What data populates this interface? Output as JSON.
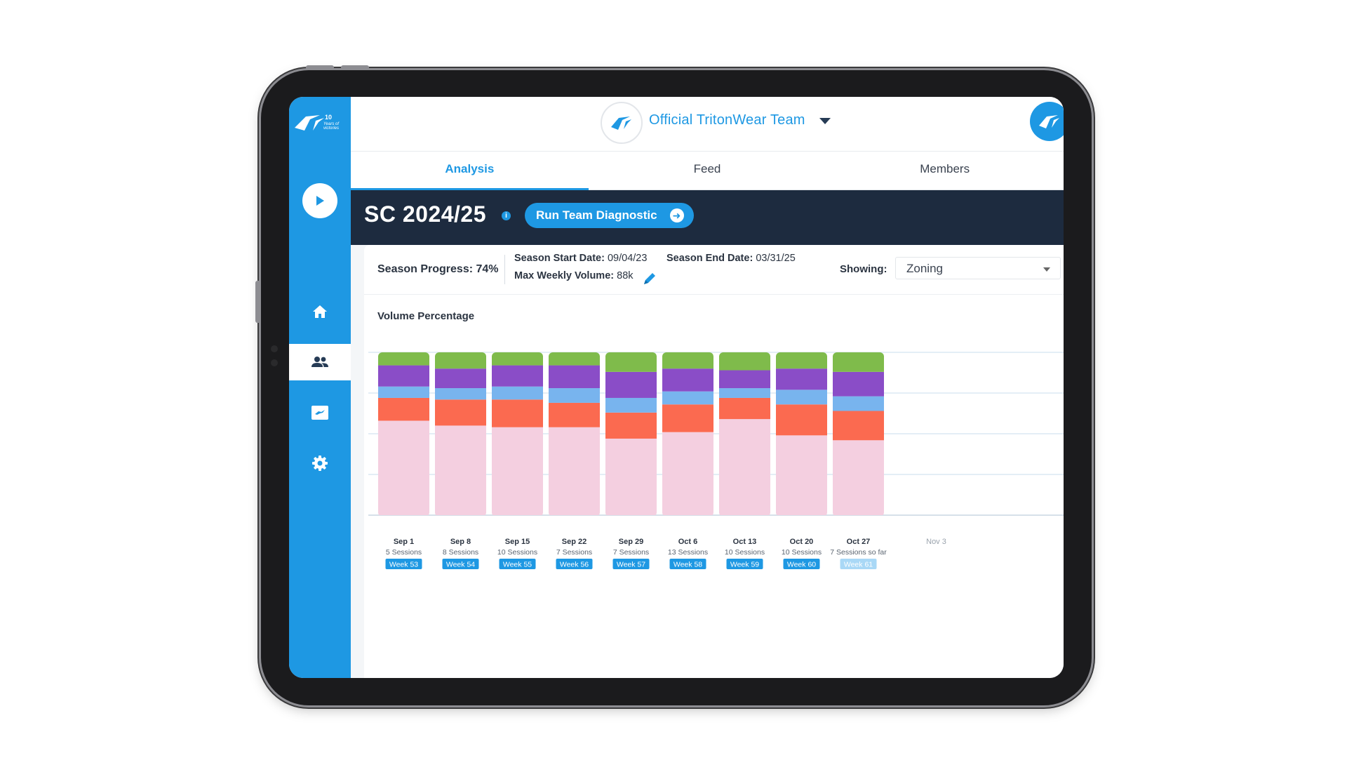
{
  "app": {
    "logo_text": "10 Years of victories",
    "team_name": "Official TritonWear Team"
  },
  "tabs": [
    {
      "label": "Analysis",
      "active": true
    },
    {
      "label": "Feed",
      "active": false
    },
    {
      "label": "Members",
      "active": false
    }
  ],
  "sidebar": {
    "items": [
      {
        "icon": "play-icon"
      },
      {
        "icon": "home-icon"
      },
      {
        "icon": "team-icon",
        "active": true
      },
      {
        "icon": "chart-icon"
      },
      {
        "icon": "gear-icon"
      }
    ]
  },
  "season": {
    "title": "SC 2024/25",
    "info_icon": "i",
    "diagnostic_label": "Run Team Diagnostic",
    "progress": "Season Progress: 74%",
    "start_label": "Season Start Date:",
    "start_value": "09/04/23",
    "end_label": "Season End Date:",
    "end_value": "03/31/25",
    "max_label": "Max Weekly Volume:",
    "max_value": "88k",
    "showing_label": "Showing:",
    "showing_value": "Zoning"
  },
  "colors": {
    "accent": "#1e98e3",
    "header_dark": "#1d2b3f",
    "zone_pink": "#f4cfe0",
    "zone_red": "#fb6a50",
    "zone_lightblue": "#78b4ee",
    "zone_purple": "#8a4dc7",
    "zone_green": "#7fbb4b"
  },
  "chart_data": {
    "type": "bar",
    "stacked": true,
    "title": "Volume Percentage",
    "ylim": [
      0,
      100
    ],
    "grid": true,
    "categories": [
      "Sep 1",
      "Sep 8",
      "Sep 15",
      "Sep 22",
      "Sep 29",
      "Oct 6",
      "Oct 13",
      "Oct 20",
      "Oct 27",
      "Nov 3"
    ],
    "sessions": [
      "5 Sessions",
      "8 Sessions",
      "10 Sessions",
      "7 Sessions",
      "7 Sessions",
      "13 Sessions",
      "10 Sessions",
      "10 Sessions",
      "7 Sessions so far",
      ""
    ],
    "weeks": [
      "Week 53",
      "Week 54",
      "Week 55",
      "Week 56",
      "Week 57",
      "Week 58",
      "Week 59",
      "Week 60",
      "Week 61",
      ""
    ],
    "series": [
      {
        "color": "#f4cfe0",
        "values": [
          58,
          55,
          54,
          54,
          47,
          51,
          59,
          49,
          46,
          null
        ]
      },
      {
        "color": "#fb6a50",
        "values": [
          14,
          16,
          17,
          15,
          16,
          17,
          13,
          19,
          18,
          null
        ]
      },
      {
        "color": "#78b4ee",
        "values": [
          7,
          7,
          8,
          9,
          9,
          8,
          6,
          9,
          9,
          null
        ]
      },
      {
        "color": "#8a4dc7",
        "values": [
          13,
          12,
          13,
          14,
          16,
          14,
          11,
          13,
          15,
          null
        ]
      },
      {
        "color": "#7fbb4b",
        "values": [
          8,
          10,
          8,
          8,
          12,
          10,
          11,
          10,
          12,
          null
        ]
      }
    ]
  }
}
